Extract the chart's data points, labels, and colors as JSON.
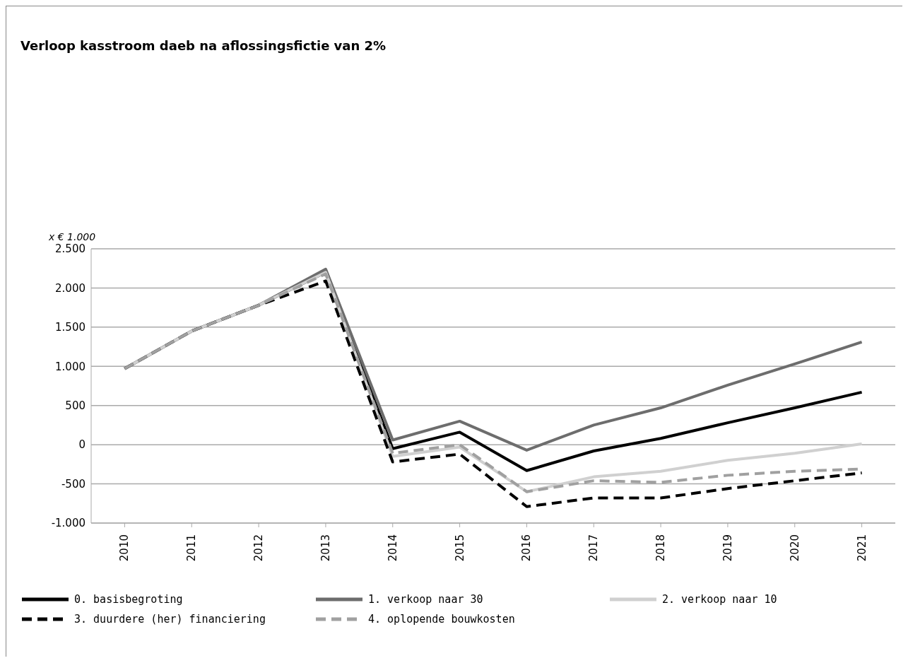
{
  "chart_data": {
    "type": "line",
    "title": "Verloop kasstroom daeb na aflossingsfictie van 2%",
    "ylabel": "x € 1.000",
    "categories": [
      "2010",
      "2011",
      "2012",
      "2013",
      "2014",
      "2015",
      "2016",
      "2017",
      "2018",
      "2019",
      "2020",
      "2021"
    ],
    "series": [
      {
        "name": "0. basisbegroting",
        "color": "#000000",
        "line_style": "solid",
        "values": [
          970,
          1450,
          1780,
          2200,
          -50,
          160,
          -330,
          -80,
          80,
          280,
          470,
          670
        ]
      },
      {
        "name": "1. verkoop naar 30",
        "color": "#6d6d6d",
        "line_style": "solid",
        "values": [
          970,
          1450,
          1780,
          2240,
          60,
          300,
          -70,
          250,
          470,
          760,
          1030,
          1310
        ]
      },
      {
        "name": "2. verkoop naar 10",
        "color": "#d0d0d0",
        "line_style": "solid",
        "values": [
          970,
          1450,
          1780,
          2200,
          -150,
          -30,
          -600,
          -410,
          -340,
          -200,
          -110,
          10
        ]
      },
      {
        "name": "3. duurdere (her) financiering",
        "color": "#000000",
        "line_style": "dashed",
        "values": [
          970,
          1450,
          1780,
          2090,
          -220,
          -120,
          -790,
          -680,
          -680,
          -560,
          -460,
          -360
        ]
      },
      {
        "name": "4. oplopende bouwkosten",
        "color": "#a0a0a0",
        "line_style": "dashed",
        "values": [
          970,
          1450,
          1780,
          2180,
          -110,
          0,
          -600,
          -460,
          -480,
          -390,
          -340,
          -310
        ]
      }
    ],
    "ylim": [
      -1000,
      2500
    ],
    "yticks": [
      {
        "value": -1000,
        "label": "-1.000"
      },
      {
        "value": -500,
        "label": "-500"
      },
      {
        "value": 0,
        "label": "0"
      },
      {
        "value": 500,
        "label": "500"
      },
      {
        "value": 1000,
        "label": "1.000"
      },
      {
        "value": 1500,
        "label": "1.500"
      },
      {
        "value": 2000,
        "label": "2.000"
      },
      {
        "value": 2500,
        "label": "2.500"
      }
    ],
    "grid": "y",
    "legend": "bottom",
    "marker": "none"
  }
}
